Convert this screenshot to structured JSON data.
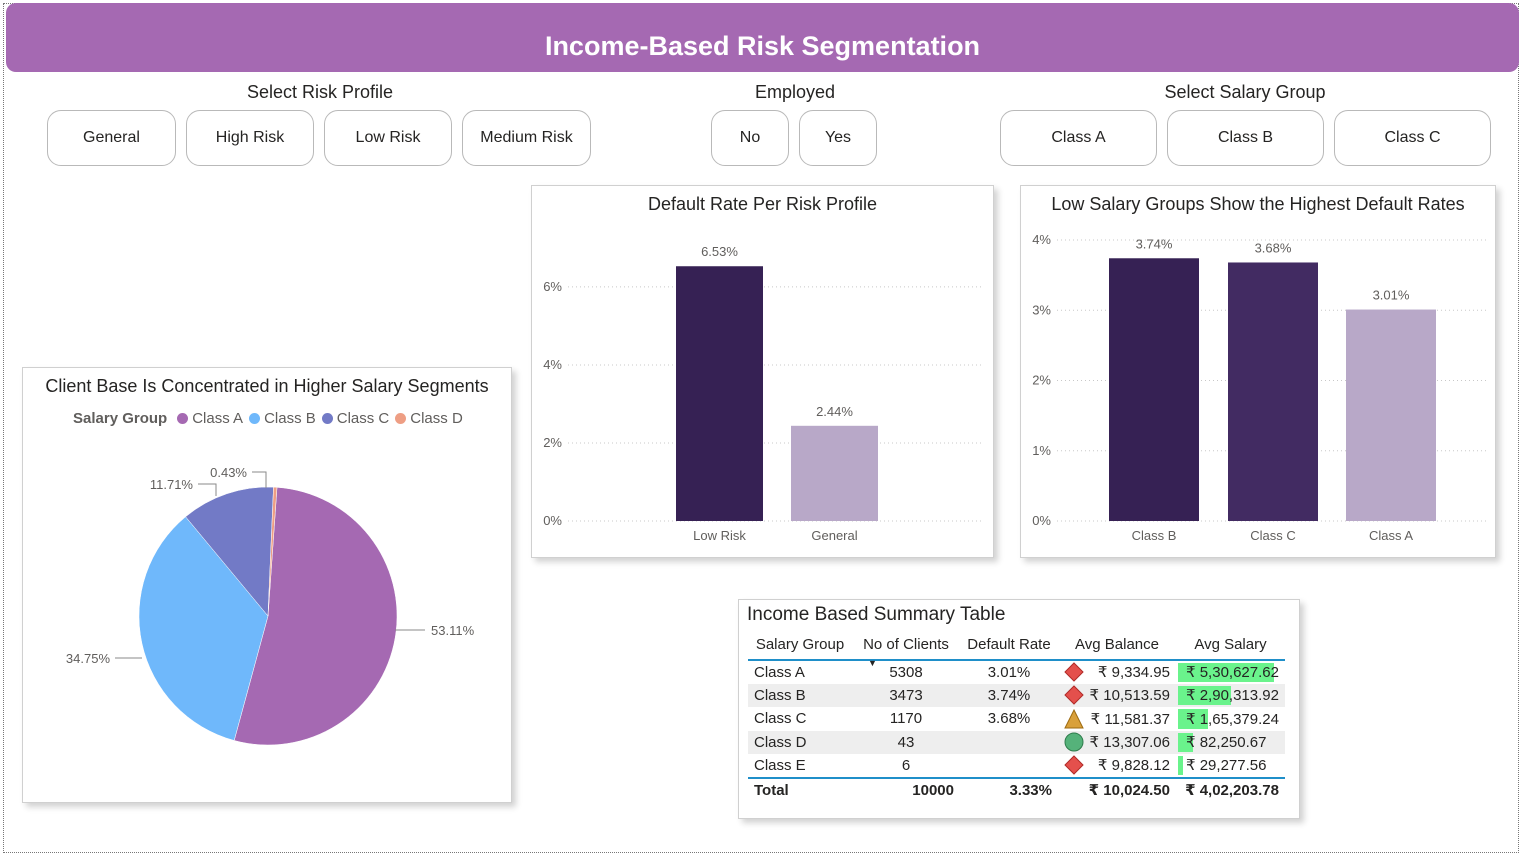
{
  "header": {
    "title": "Income-Based Risk Segmentation"
  },
  "slicers": {
    "risk_profile": {
      "title": "Select Risk Profile",
      "options": [
        "General",
        "High Risk",
        "Low Risk",
        "Medium Risk"
      ]
    },
    "employed": {
      "title": "Employed",
      "options": [
        "No",
        "Yes"
      ]
    },
    "salary_group": {
      "title": "Select Salary Group",
      "options": [
        "Class A",
        "Class B",
        "Class C"
      ]
    }
  },
  "colors": {
    "header_bg": "#a569b2",
    "class_a": "#a569b2",
    "class_b": "#6fb8fb",
    "class_c": "#727ac6",
    "class_d": "#ee9e84",
    "bar_dark": "#362154",
    "bar_mid": "#422b62",
    "bar_light": "#b8a8c8",
    "kpi_green": "#6af38c",
    "table_accent": "#1f8fc9"
  },
  "chart_data": [
    {
      "id": "pie",
      "type": "pie",
      "title": "Client Base Is Concentrated in Higher Salary Segments",
      "legend_title": "Salary Group",
      "legend_position": "top",
      "categories": [
        "Class A",
        "Class B",
        "Class C",
        "Class D"
      ],
      "values": [
        53.11,
        34.75,
        11.71,
        0.43
      ],
      "labels": [
        "53.11%",
        "34.75%",
        "11.71%",
        "0.43%"
      ]
    },
    {
      "id": "risk_bar",
      "type": "bar",
      "title": "Default Rate Per Risk Profile",
      "categories": [
        "Low Risk",
        "General"
      ],
      "values": [
        6.53,
        2.44
      ],
      "value_labels": [
        "6.53%",
        "2.44%"
      ],
      "yticks": [
        "0%",
        "2%",
        "4%",
        "6%"
      ],
      "ytick_values": [
        0,
        2,
        4,
        6
      ],
      "ylim": [
        0,
        7.1
      ],
      "grid": true
    },
    {
      "id": "salary_bar",
      "type": "bar",
      "title": "Low Salary Groups Show the Highest Default Rates",
      "categories": [
        "Class B",
        "Class C",
        "Class A"
      ],
      "values": [
        3.74,
        3.68,
        3.01
      ],
      "value_labels": [
        "3.74%",
        "3.68%",
        "3.01%"
      ],
      "yticks": [
        "0%",
        "1%",
        "2%",
        "3%",
        "4%"
      ],
      "ytick_values": [
        0,
        1,
        2,
        3,
        4
      ],
      "ylim": [
        0,
        4
      ],
      "grid": true
    }
  ],
  "summary_table": {
    "title": "Income Based Summary Table",
    "columns": [
      "Salary Group",
      "No of Clients",
      "Default Rate",
      "Avg Balance",
      "Avg Salary"
    ],
    "rows": [
      {
        "group": "Class A",
        "clients": "5308",
        "default_rate": "3.01%",
        "icon": "diamond-red",
        "balance": "₹ 9,334.95",
        "salary": "₹ 5,30,627.62",
        "salary_value": 530627.62
      },
      {
        "group": "Class B",
        "clients": "3473",
        "default_rate": "3.74%",
        "icon": "diamond-red",
        "balance": "₹ 10,513.59",
        "salary": "₹ 2,90,313.92",
        "salary_value": 290313.92
      },
      {
        "group": "Class C",
        "clients": "1170",
        "default_rate": "3.68%",
        "icon": "triangle-yellow",
        "balance": "₹ 11,581.37",
        "salary": "₹ 1,65,379.24",
        "salary_value": 165379.24
      },
      {
        "group": "Class D",
        "clients": "43",
        "default_rate": "",
        "icon": "circle-green",
        "balance": "₹ 13,307.06",
        "salary": "₹ 82,250.67",
        "salary_value": 82250.67
      },
      {
        "group": "Class E",
        "clients": "6",
        "default_rate": "",
        "icon": "diamond-red",
        "balance": "₹ 9,828.12",
        "salary": "₹ 29,277.56",
        "salary_value": 29277.56
      }
    ],
    "total": {
      "label": "Total",
      "clients": "10000",
      "default_rate": "3.33%",
      "balance": "₹ 10,024.50",
      "salary": "₹ 4,02,203.78"
    }
  }
}
